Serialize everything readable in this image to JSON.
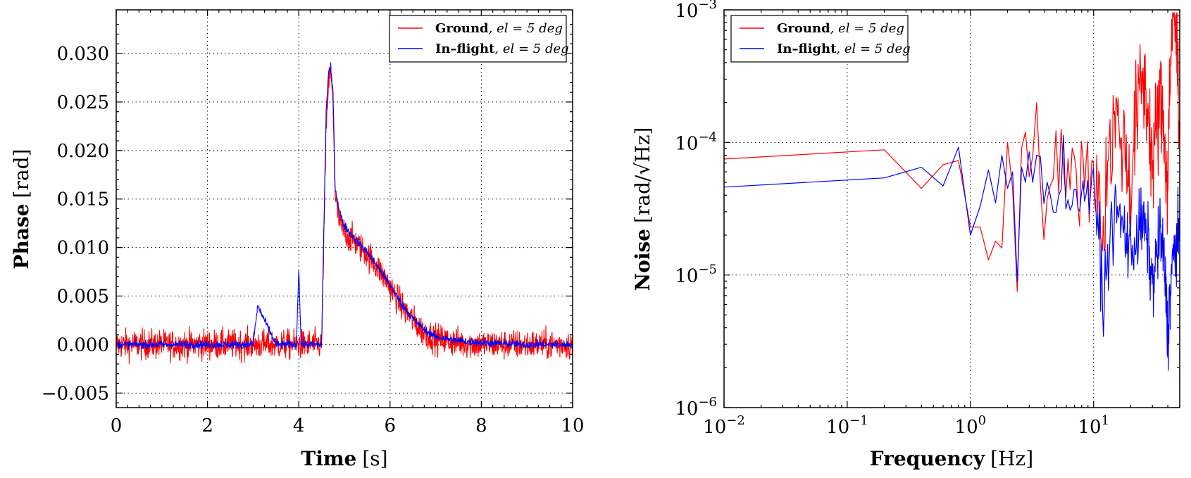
{
  "colors": {
    "ground": "#ff0000",
    "inflight": "#0000ff"
  },
  "chart_data": [
    {
      "type": "line",
      "xlabel": {
        "bold": "Time",
        "unit": "[s]"
      },
      "ylabel": {
        "bold": "Phase",
        "unit": "[rad]"
      },
      "xlim": [
        0,
        10
      ],
      "ylim": [
        -0.0065,
        0.0345
      ],
      "xticks": [
        "0",
        "2",
        "4",
        "6",
        "8",
        "10"
      ],
      "yticks": [
        "−0.005",
        "0.000",
        "0.005",
        "0.010",
        "0.015",
        "0.020",
        "0.025",
        "0.030"
      ],
      "grid": true,
      "legend_position": "top-right",
      "series": [
        {
          "name": "Ground",
          "name_suffix": ", el = 5 deg",
          "color": "#ff0000",
          "x": [
            0.0,
            0.5,
            1.0,
            1.5,
            2.0,
            2.5,
            3.0,
            3.5,
            4.0,
            4.5,
            4.6,
            4.65,
            4.7,
            4.75,
            4.8,
            4.9,
            5.0,
            5.25,
            5.5,
            5.75,
            6.0,
            6.25,
            6.5,
            6.75,
            7.0,
            7.5,
            8.0,
            8.5,
            9.0,
            9.5,
            10.0
          ],
          "y": [
            0.0,
            0.0,
            0.0,
            0.0,
            0.0,
            0.0,
            0.0,
            0.0,
            0.0,
            0.0,
            0.022,
            0.027,
            0.028,
            0.025,
            0.015,
            0.0125,
            0.0115,
            0.0105,
            0.0093,
            0.0078,
            0.006,
            0.004,
            0.0025,
            0.0012,
            0.0006,
            0.0002,
            0.0,
            0.0,
            0.0,
            0.0,
            0.0
          ],
          "noise": 0.0015
        },
        {
          "name": "In–flight",
          "name_suffix": ", el = 5 deg",
          "color": "#0000ff",
          "x": [
            0.0,
            0.5,
            1.0,
            1.5,
            2.0,
            2.5,
            3.0,
            3.1,
            3.5,
            3.95,
            4.0,
            4.05,
            4.5,
            4.6,
            4.65,
            4.7,
            4.75,
            4.8,
            4.9,
            5.0,
            5.25,
            5.5,
            5.75,
            6.0,
            6.25,
            6.5,
            6.75,
            7.0,
            7.5,
            8.0,
            8.5,
            9.0,
            9.5,
            10.0
          ],
          "y": [
            0.0,
            0.0,
            0.0,
            0.0,
            0.0,
            0.0,
            0.0,
            0.004,
            0.0,
            0.0,
            0.008,
            0.0,
            0.0,
            0.024,
            0.028,
            0.0285,
            0.026,
            0.016,
            0.0135,
            0.0122,
            0.0108,
            0.0095,
            0.0079,
            0.0061,
            0.0042,
            0.0027,
            0.0015,
            0.0008,
            0.0004,
            0.0002,
            0.0001,
            0.0,
            0.0,
            0.0
          ],
          "noise": 0.0004
        }
      ]
    },
    {
      "type": "line",
      "xlabel": {
        "bold": "Frequency",
        "unit": "[Hz]"
      },
      "ylabel": {
        "bold": "Noise",
        "unit": "[rad/√Hz]"
      },
      "xscale": "log",
      "yscale": "log",
      "xlim": [
        0.01,
        50
      ],
      "ylim": [
        1e-06,
        0.001
      ],
      "xticks": [
        {
          "base": "10",
          "exp": "−2",
          "value": 0.01
        },
        {
          "base": "10",
          "exp": "−1",
          "value": 0.1
        },
        {
          "base": "10",
          "exp": "0",
          "value": 1
        },
        {
          "base": "10",
          "exp": "1",
          "value": 10
        }
      ],
      "yticks": [
        {
          "base": "10",
          "exp": "−6",
          "value": 1e-06
        },
        {
          "base": "10",
          "exp": "−5",
          "value": 1e-05
        },
        {
          "base": "10",
          "exp": "−4",
          "value": 0.0001
        },
        {
          "base": "10",
          "exp": "−3",
          "value": 0.001
        }
      ],
      "grid": true,
      "legend_position": "top-left",
      "series": [
        {
          "name": "Ground",
          "name_suffix": ", el = 5 deg",
          "color": "#ff0000",
          "x": [
            0.01,
            0.2,
            0.4,
            0.6,
            0.8,
            1.0,
            1.2,
            1.4,
            1.6,
            1.8,
            2.0,
            2.2,
            2.4,
            2.6,
            2.8,
            3.0,
            3.5,
            4.0,
            5.0,
            6.0,
            7.0,
            8.0,
            10.0,
            12.0,
            15.0,
            20.0,
            25.0,
            30.0,
            35.0,
            40.0,
            45.0,
            50.0
          ],
          "y": [
            7.5e-05,
            8.8e-05,
            4.5e-05,
            6.8e-05,
            7.3e-05,
            2.3e-05,
            2.3e-05,
            1.3e-05,
            1.8e-05,
            1.6e-05,
            0.0001,
            4.5e-05,
            7.5e-06,
            9e-05,
            0.00012,
            5.5e-05,
            8e-05,
            4e-05,
            7e-05,
            3e-05,
            9e-05,
            5e-05,
            6.5e-05,
            2e-05,
            0.00015,
            4e-05,
            0.0003,
            6e-05,
            0.0002,
            3e-05,
            0.0009,
            6e-05
          ],
          "noise_factor": 2.2
        },
        {
          "name": "In–flight",
          "name_suffix": ", el = 5 deg",
          "color": "#0000ff",
          "x": [
            0.01,
            0.2,
            0.4,
            0.6,
            0.8,
            1.0,
            1.2,
            1.4,
            1.6,
            1.8,
            2.0,
            2.2,
            2.4,
            2.6,
            2.8,
            3.0,
            3.5,
            4.0,
            5.0,
            6.0,
            7.0,
            8.0,
            10.0,
            12.0,
            15.0,
            20.0,
            25.0,
            30.0,
            35.0,
            40.0,
            45.0,
            50.0
          ],
          "y": [
            4.6e-05,
            5.4e-05,
            6.5e-05,
            4.7e-05,
            9.2e-05,
            2e-05,
            3.3e-05,
            6.2e-05,
            3.5e-05,
            8e-05,
            4.5e-05,
            6e-05,
            9e-06,
            6.5e-05,
            5e-05,
            8.5e-05,
            4e-05,
            7e-05,
            3e-05,
            6e-05,
            2.5e-05,
            5e-05,
            3.5e-05,
            5e-06,
            3e-05,
            1.5e-05,
            2.5e-05,
            8e-06,
            2e-05,
            3e-06,
            1.5e-05,
            2e-05
          ],
          "noise_factor": 1.7
        }
      ]
    }
  ]
}
